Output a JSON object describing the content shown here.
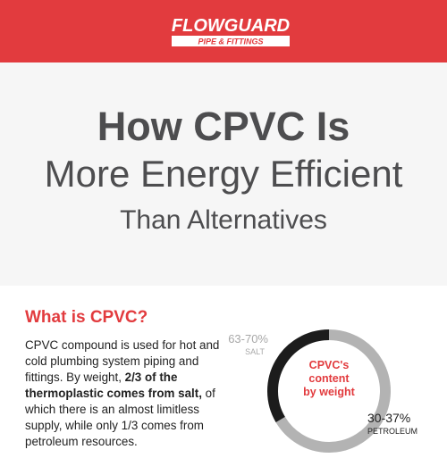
{
  "brand": {
    "name": "FLOWGUARD",
    "tagline": "PIPE & FITTINGS",
    "primary_color": "#e23b3e"
  },
  "hero": {
    "line1": "How CPVC Is",
    "line2": "More Energy Efficient",
    "line3": "Than Alternatives"
  },
  "section": {
    "heading": "What is CPVC?",
    "body_part1": "CPVC compound is used for hot and cold plumbing system piping and fittings. By weight, ",
    "body_bold": "2/3 of the thermoplastic comes from salt,",
    "body_part2": " of which there is an almost limitless supply, while only 1/3 comes from petroleum resources."
  },
  "chart_data": {
    "type": "pie",
    "title": "CPVC's content by weight",
    "slices": [
      {
        "pct_label": "63-70%",
        "name": "SALT",
        "value": 66.5,
        "color": "#b3b3b3"
      },
      {
        "pct_label": "30-37%",
        "name": "PETROLEUM",
        "value": 33.5,
        "color": "#1c1c1c"
      }
    ]
  },
  "donut": {
    "center_line1": "CPVC's",
    "center_line2": "content",
    "center_line3": "by weight"
  }
}
